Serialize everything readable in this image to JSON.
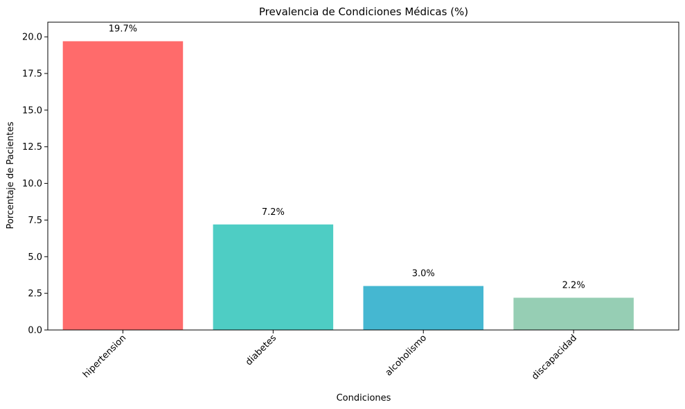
{
  "chart_data": {
    "type": "bar",
    "title": "Prevalencia de Condiciones Médicas (%)",
    "xlabel": "Condiciones",
    "ylabel": "Porcentaje de Pacientes",
    "categories": [
      "hipertension",
      "diabetes",
      "alcoholismo",
      "discapacidad"
    ],
    "values": [
      19.7,
      7.2,
      3.0,
      2.2
    ],
    "data_labels": [
      "19.7%",
      "7.2%",
      "3.0%",
      "2.2%"
    ],
    "colors": [
      "#ff6b6b",
      "#4ecdc4",
      "#45b7d1",
      "#96ceb4"
    ],
    "ylim": [
      0,
      21.0
    ],
    "yticks": [
      0.0,
      2.5,
      5.0,
      7.5,
      10.0,
      12.5,
      15.0,
      17.5,
      20.0
    ],
    "ytick_labels": [
      "0.0",
      "2.5",
      "5.0",
      "7.5",
      "10.0",
      "12.5",
      "15.0",
      "17.5",
      "20.0"
    ],
    "grid": false,
    "legend": "none",
    "xtick_rotation": 45
  }
}
